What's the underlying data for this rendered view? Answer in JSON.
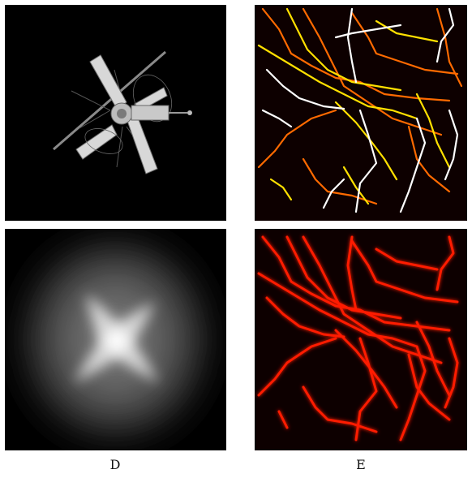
{
  "figure": {
    "captions": {
      "left": "D",
      "right": "E"
    },
    "panels": [
      {
        "id": "top-left",
        "depicts": "space-station-render",
        "background": "#000000"
      },
      {
        "id": "top-right",
        "depicts": "colored-line-network",
        "background": "#0d0000",
        "line_colors": [
          "#ffffff",
          "#ffe000",
          "#ff6a00",
          "#ffffff"
        ]
      },
      {
        "id": "bottom-left",
        "depicts": "blurred-four-point-star-density",
        "background": "#000000"
      },
      {
        "id": "bottom-right",
        "depicts": "glowing-red-line-network",
        "background": "#0d0000",
        "line_colors": [
          "#ff1a00"
        ]
      }
    ]
  }
}
